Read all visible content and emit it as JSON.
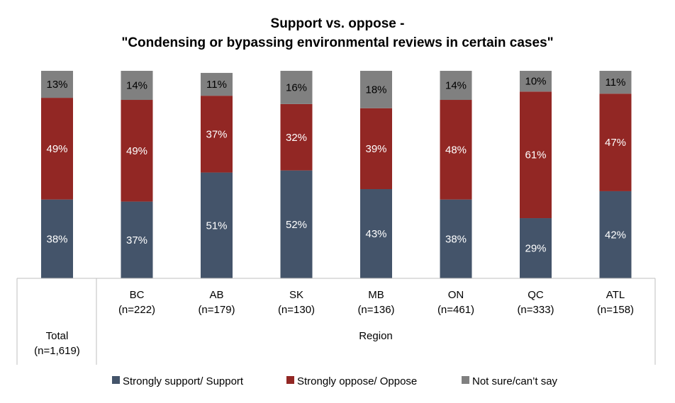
{
  "chart_data": {
    "type": "bar",
    "stacked": true,
    "percent_stacked": true,
    "title": "Support vs. oppose -",
    "subtitle": "\"Condensing or bypassing environmental reviews in certain cases\"",
    "categories": [
      {
        "name": "Total",
        "n": "(n=1,619)"
      },
      {
        "name": "BC",
        "n": "(n=222)"
      },
      {
        "name": "AB",
        "n": "(n=179)"
      },
      {
        "name": "SK",
        "n": "(n=130)"
      },
      {
        "name": "MB",
        "n": "(n=136)"
      },
      {
        "name": "ON",
        "n": "(n=461)"
      },
      {
        "name": "QC",
        "n": "(n=333)"
      },
      {
        "name": "ATL",
        "n": "(n=158)"
      }
    ],
    "group_label": "Region",
    "series": [
      {
        "name": "Strongly support/ Support",
        "color": "#44546a",
        "values": [
          38,
          37,
          51,
          52,
          43,
          38,
          29,
          42
        ]
      },
      {
        "name": "Strongly oppose/ Oppose",
        "color": "#922724",
        "values": [
          49,
          49,
          37,
          32,
          39,
          48,
          61,
          47
        ]
      },
      {
        "name": "Not sure/can’t say",
        "color": "#808080",
        "values": [
          13,
          14,
          11,
          16,
          18,
          14,
          10,
          11
        ]
      }
    ],
    "value_suffix": "%",
    "legend_position": "bottom",
    "ylim": [
      0,
      100
    ],
    "grid": false
  }
}
